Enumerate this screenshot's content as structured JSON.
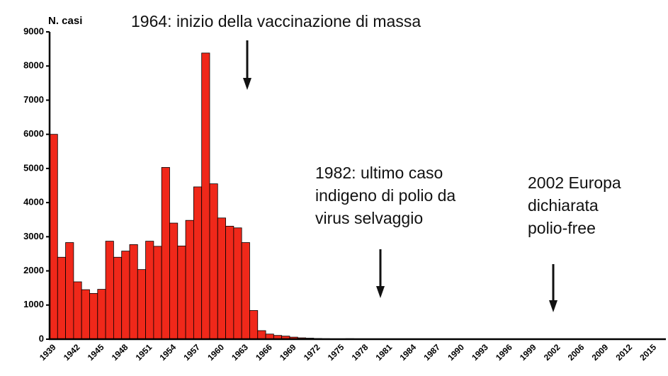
{
  "chart_data": {
    "type": "bar",
    "ylabel": "N. casi",
    "categories": [
      "1939",
      null,
      null,
      "1942",
      null,
      null,
      "1945",
      null,
      null,
      "1948",
      null,
      null,
      "1951",
      null,
      null,
      "1954",
      null,
      null,
      "1957",
      null,
      null,
      "1960",
      null,
      null,
      "1963",
      null,
      null,
      "1966",
      null,
      null,
      "1969",
      null,
      null,
      "1972",
      null,
      null,
      "1975",
      null,
      null,
      "1978",
      null,
      null,
      "1981",
      null,
      null,
      "1984",
      null,
      null,
      "1987",
      null,
      null,
      "1990",
      null,
      null,
      "1993",
      null,
      null,
      "1996",
      null,
      null,
      "1999",
      null,
      null,
      "2002",
      null,
      null,
      "2006",
      null,
      null,
      "2009",
      null,
      null,
      "2012",
      null,
      null,
      "2015",
      null
    ],
    "values": [
      6000,
      2400,
      2830,
      1680,
      1450,
      1340,
      1460,
      2870,
      2400,
      2580,
      2770,
      2040,
      2870,
      2720,
      5030,
      3400,
      2730,
      3480,
      4460,
      8380,
      4550,
      3550,
      3310,
      3260,
      2830,
      840,
      250,
      150,
      110,
      90,
      60,
      40,
      30,
      20,
      15,
      10,
      10,
      15,
      10,
      5,
      5,
      5,
      2,
      0,
      0,
      0,
      0,
      0,
      0,
      0,
      0,
      0,
      0,
      0,
      0,
      0,
      0,
      0,
      0,
      0,
      0,
      0,
      0,
      0,
      0,
      0,
      0,
      0,
      0,
      0,
      0,
      0,
      0,
      0,
      0,
      0,
      0
    ],
    "color": "#f0281a",
    "ylim": [
      0,
      9000
    ],
    "yticks": [
      0,
      1000,
      2000,
      3000,
      4000,
      5000,
      6000,
      7000,
      8000,
      9000
    ],
    "annotations": [
      {
        "lines": [
          "1964: inizio della vaccinazione di massa"
        ]
      },
      {
        "lines": [
          "1982: ultimo caso",
          "indigeno di polio da",
          "virus selvaggio"
        ]
      },
      {
        "lines": [
          "2002 Europa",
          "dichiarata",
          "polio-free"
        ]
      }
    ]
  }
}
